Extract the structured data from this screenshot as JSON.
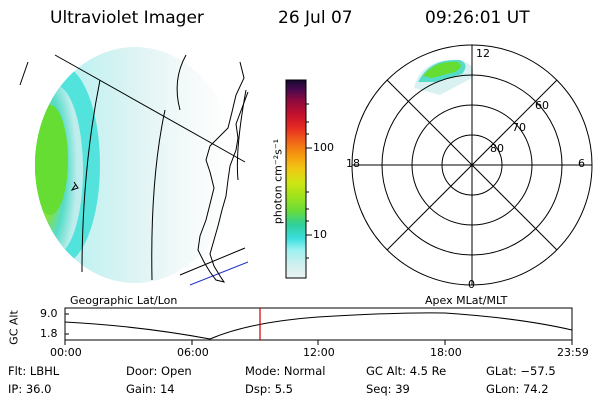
{
  "header": {
    "title": "Ultraviolet Imager",
    "date": "26 Jul 07",
    "time": "09:26:01 UT"
  },
  "colorbar": {
    "unit_label": "photon cm⁻²s⁻¹",
    "ticks": [
      "100",
      "10"
    ],
    "colors": [
      "#eaf3f3",
      "#cfeeee",
      "#9ff2f2",
      "#3bdede",
      "#2fd09a",
      "#6adc3a",
      "#9ee21c",
      "#cde614",
      "#f0c814",
      "#f59a10",
      "#f06418",
      "#e52a22",
      "#c0102e",
      "#8a0a3e",
      "#4a0a4e",
      "#140a30"
    ]
  },
  "polar": {
    "mlt_labels": {
      "top": "12",
      "left": "18",
      "right": "6",
      "bottom": "0"
    },
    "lat_labels": [
      "60",
      "70",
      "80"
    ]
  },
  "timeline": {
    "left_title": "Geographic Lat/Lon",
    "right_title": "Apex MLat/MLT",
    "axis_label": "GC Alt",
    "y_ticks": [
      "9.0",
      "1.8"
    ],
    "x_ticks": [
      "00:00",
      "06:00",
      "12:00",
      "18:00",
      "23:59"
    ],
    "marker_color": "#cc0000"
  },
  "info": {
    "row1": [
      {
        "label": "Flt:",
        "value": "LBHL"
      },
      {
        "label": "Door:",
        "value": "Open"
      },
      {
        "label": "Mode:",
        "value": "Normal"
      },
      {
        "label": "GC Alt:",
        "value": "4.5 Re"
      },
      {
        "label": "GLat:",
        "value": "−57.5"
      }
    ],
    "row2": [
      {
        "label": "IP:",
        "value": "36.0"
      },
      {
        "label": "Gain:",
        "value": "14"
      },
      {
        "label": "Dsp:",
        "value": "5.5"
      },
      {
        "label": "Seq:",
        "value": "39"
      },
      {
        "label": "GLon:",
        "value": "74.2"
      }
    ]
  }
}
